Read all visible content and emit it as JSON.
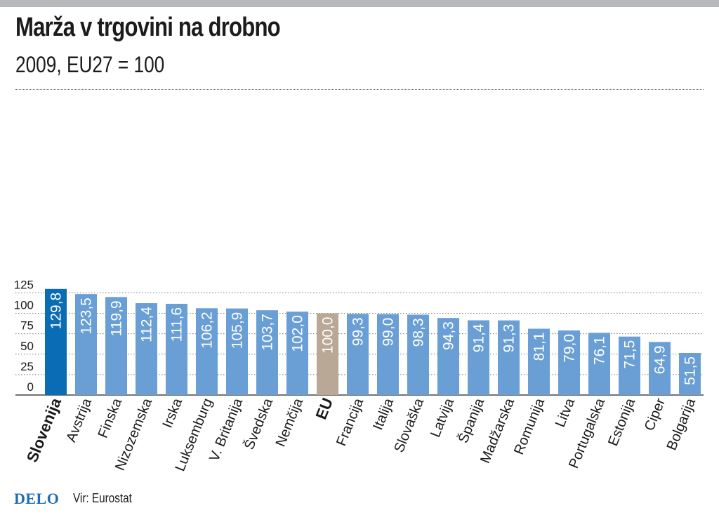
{
  "chart_data": {
    "type": "bar",
    "title": "Marža v trgovini na drobno",
    "subtitle": "2009, EU27 = 100",
    "ylim": [
      0,
      135
    ],
    "yticks": [
      0,
      25,
      50,
      75,
      100,
      125
    ],
    "grid": true,
    "categories": [
      "Slovenija",
      "Avstrija",
      "Finska",
      "Nizozemska",
      "Irska",
      "Luksemburg",
      "V. Britanija",
      "Švedska",
      "Nemčija",
      "EU",
      "Francija",
      "Italija",
      "Slovaška",
      "Latvija",
      "Španija",
      "Madžarska",
      "Romunija",
      "Litva",
      "Portugalska",
      "Estonija",
      "Ciper",
      "Bolgarija"
    ],
    "values": [
      129.8,
      123.5,
      119.9,
      112.4,
      111.6,
      106.2,
      105.9,
      103.7,
      102.0,
      100.0,
      99.3,
      99.0,
      98.3,
      94.3,
      91.4,
      91.3,
      81.1,
      79.0,
      76.1,
      71.5,
      64.9,
      51.5
    ],
    "value_labels": [
      "129,8",
      "123,5",
      "119,9",
      "112,4",
      "111,6",
      "106,2",
      "105,9",
      "103,7",
      "102,0",
      "100,0",
      "99,3",
      "99,0",
      "98,3",
      "94,3",
      "91,4",
      "91,3",
      "81,1",
      "79,0",
      "76,1",
      "71,5",
      "64,9",
      "51,5"
    ],
    "highlight": {
      "Slovenija": "#0a6cb4",
      "EU": "#b8a895"
    },
    "bar_color": "#6a9fd6"
  },
  "footer": {
    "logo": "DELO",
    "source": "Vir: Eurostat"
  }
}
